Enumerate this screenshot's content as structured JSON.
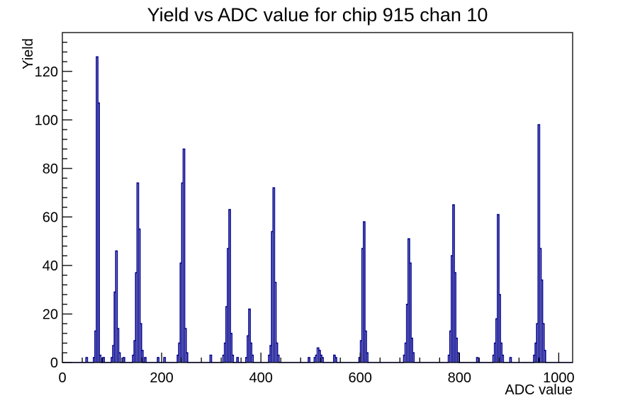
{
  "window": {
    "title": "Yield vs ADC value for chip 915 chan 10"
  },
  "chart_data": {
    "type": "bar",
    "title": "Yield vs ADC value for chip 915 chan 10",
    "xlabel": "ADC value",
    "ylabel": "Yield",
    "xlim": [
      0,
      1028
    ],
    "ylim": [
      0,
      136
    ],
    "x_major_ticks": [
      0,
      200,
      400,
      600,
      800,
      1000
    ],
    "x_minor_step": 40,
    "y_major_ticks": [
      0,
      20,
      40,
      60,
      80,
      100,
      120
    ],
    "y_minor_step": 4,
    "bin_width": 3,
    "grid": false,
    "legend_position": "none",
    "line_color": "#02028e",
    "axis_color": "#000000",
    "background_color": "#ffffff",
    "points": [
      [
        49,
        2
      ],
      [
        64,
        2
      ],
      [
        67,
        13
      ],
      [
        70,
        126
      ],
      [
        73,
        107
      ],
      [
        76,
        3
      ],
      [
        83,
        2
      ],
      [
        100,
        2
      ],
      [
        103,
        7
      ],
      [
        106,
        29
      ],
      [
        109,
        46
      ],
      [
        112,
        14
      ],
      [
        115,
        4
      ],
      [
        124,
        2
      ],
      [
        143,
        3
      ],
      [
        146,
        9
      ],
      [
        149,
        37
      ],
      [
        152,
        74
      ],
      [
        155,
        55
      ],
      [
        158,
        16
      ],
      [
        161,
        5
      ],
      [
        167,
        2
      ],
      [
        193,
        2
      ],
      [
        206,
        2
      ],
      [
        233,
        3
      ],
      [
        236,
        8
      ],
      [
        239,
        41
      ],
      [
        242,
        74
      ],
      [
        245,
        88
      ],
      [
        248,
        14
      ],
      [
        251,
        4
      ],
      [
        299,
        3
      ],
      [
        325,
        3
      ],
      [
        328,
        8
      ],
      [
        331,
        23
      ],
      [
        334,
        47
      ],
      [
        337,
        63
      ],
      [
        340,
        12
      ],
      [
        343,
        3
      ],
      [
        353,
        2
      ],
      [
        371,
        2
      ],
      [
        374,
        11
      ],
      [
        377,
        22
      ],
      [
        380,
        8
      ],
      [
        383,
        3
      ],
      [
        417,
        3
      ],
      [
        420,
        7
      ],
      [
        423,
        54
      ],
      [
        426,
        72
      ],
      [
        429,
        33
      ],
      [
        432,
        8
      ],
      [
        435,
        3
      ],
      [
        497,
        2
      ],
      [
        509,
        2
      ],
      [
        512,
        3
      ],
      [
        515,
        6
      ],
      [
        518,
        5
      ],
      [
        521,
        3
      ],
      [
        524,
        2
      ],
      [
        548,
        3
      ],
      [
        551,
        2
      ],
      [
        599,
        2
      ],
      [
        602,
        9
      ],
      [
        605,
        47
      ],
      [
        608,
        58
      ],
      [
        611,
        13
      ],
      [
        614,
        4
      ],
      [
        689,
        3
      ],
      [
        692,
        8
      ],
      [
        695,
        24
      ],
      [
        698,
        51
      ],
      [
        701,
        41
      ],
      [
        704,
        10
      ],
      [
        707,
        4
      ],
      [
        779,
        3
      ],
      [
        782,
        13
      ],
      [
        785,
        44
      ],
      [
        788,
        65
      ],
      [
        791,
        37
      ],
      [
        794,
        10
      ],
      [
        797,
        4
      ],
      [
        836,
        2
      ],
      [
        869,
        3
      ],
      [
        872,
        8
      ],
      [
        875,
        18
      ],
      [
        878,
        61
      ],
      [
        881,
        28
      ],
      [
        884,
        8
      ],
      [
        887,
        3
      ],
      [
        903,
        2
      ],
      [
        951,
        3
      ],
      [
        954,
        8
      ],
      [
        957,
        16
      ],
      [
        960,
        98
      ],
      [
        963,
        47
      ],
      [
        966,
        34
      ],
      [
        969,
        16
      ],
      [
        972,
        5
      ]
    ]
  }
}
